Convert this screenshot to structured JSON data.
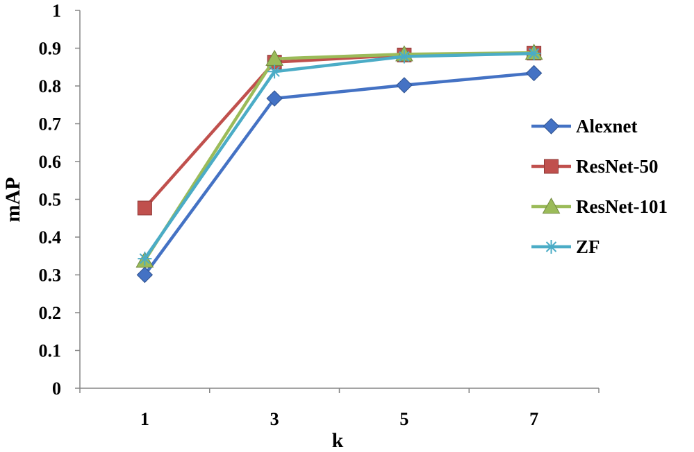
{
  "chart_data": {
    "type": "line",
    "title": "",
    "xlabel": "k",
    "ylabel": "mAP",
    "categories": [
      "1",
      "3",
      "5",
      "7"
    ],
    "x": [
      1,
      3,
      5,
      7
    ],
    "ylim": [
      0,
      1
    ],
    "yticks": [
      "0",
      "0.1",
      "0.2",
      "0.3",
      "0.4",
      "0.5",
      "0.6",
      "0.7",
      "0.8",
      "0.9",
      "1"
    ],
    "grid": false,
    "legend_position": "right",
    "series": [
      {
        "name": "Alexnet",
        "values": [
          0.3,
          0.767,
          0.802,
          0.834
        ],
        "color": "#4472C4",
        "marker": "diamond"
      },
      {
        "name": "ResNet-50",
        "values": [
          0.477,
          0.863,
          0.882,
          0.887
        ],
        "color": "#C0504D",
        "marker": "square"
      },
      {
        "name": "ResNet-101",
        "values": [
          0.338,
          0.872,
          0.884,
          0.888
        ],
        "color": "#9BBB59",
        "marker": "triangle"
      },
      {
        "name": "ZF",
        "values": [
          0.343,
          0.838,
          0.878,
          0.886
        ],
        "color": "#4BACC6",
        "marker": "star"
      }
    ]
  }
}
